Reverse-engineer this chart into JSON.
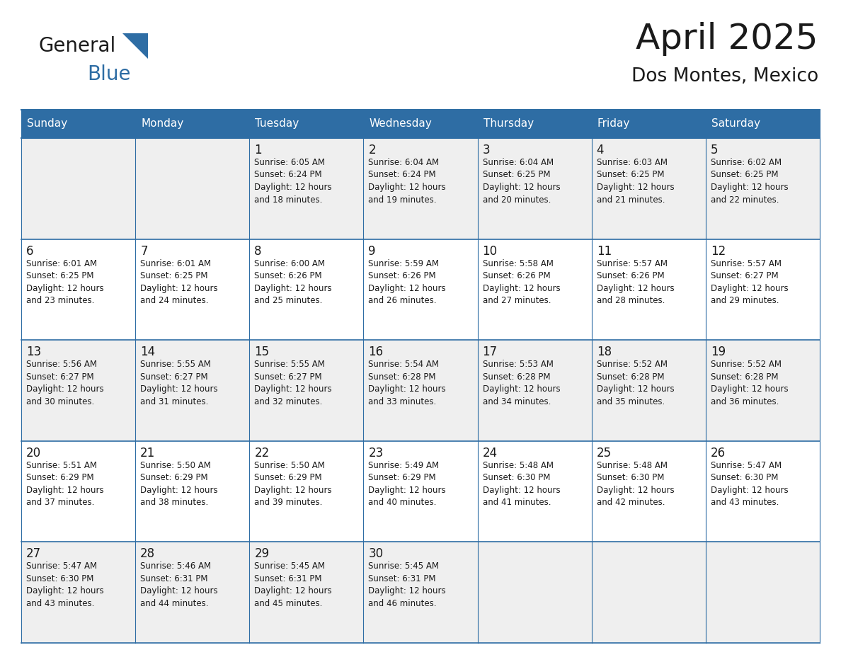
{
  "title": "April 2025",
  "subtitle": "Dos Montes, Mexico",
  "header_bg_color": "#2E6DA4",
  "header_text_color": "#FFFFFF",
  "row0_bg": "#EFEFEF",
  "row1_bg": "#FFFFFF",
  "border_color": "#2E6DA4",
  "text_color": "#1a1a1a",
  "logo_general_color": "#1a1a1a",
  "logo_blue_color": "#2E6DA4",
  "logo_triangle_color": "#2E6DA4",
  "day_names": [
    "Sunday",
    "Monday",
    "Tuesday",
    "Wednesday",
    "Thursday",
    "Friday",
    "Saturday"
  ],
  "weeks": [
    [
      {
        "day": "",
        "text": ""
      },
      {
        "day": "",
        "text": ""
      },
      {
        "day": "1",
        "text": "Sunrise: 6:05 AM\nSunset: 6:24 PM\nDaylight: 12 hours\nand 18 minutes."
      },
      {
        "day": "2",
        "text": "Sunrise: 6:04 AM\nSunset: 6:24 PM\nDaylight: 12 hours\nand 19 minutes."
      },
      {
        "day": "3",
        "text": "Sunrise: 6:04 AM\nSunset: 6:25 PM\nDaylight: 12 hours\nand 20 minutes."
      },
      {
        "day": "4",
        "text": "Sunrise: 6:03 AM\nSunset: 6:25 PM\nDaylight: 12 hours\nand 21 minutes."
      },
      {
        "day": "5",
        "text": "Sunrise: 6:02 AM\nSunset: 6:25 PM\nDaylight: 12 hours\nand 22 minutes."
      }
    ],
    [
      {
        "day": "6",
        "text": "Sunrise: 6:01 AM\nSunset: 6:25 PM\nDaylight: 12 hours\nand 23 minutes."
      },
      {
        "day": "7",
        "text": "Sunrise: 6:01 AM\nSunset: 6:25 PM\nDaylight: 12 hours\nand 24 minutes."
      },
      {
        "day": "8",
        "text": "Sunrise: 6:00 AM\nSunset: 6:26 PM\nDaylight: 12 hours\nand 25 minutes."
      },
      {
        "day": "9",
        "text": "Sunrise: 5:59 AM\nSunset: 6:26 PM\nDaylight: 12 hours\nand 26 minutes."
      },
      {
        "day": "10",
        "text": "Sunrise: 5:58 AM\nSunset: 6:26 PM\nDaylight: 12 hours\nand 27 minutes."
      },
      {
        "day": "11",
        "text": "Sunrise: 5:57 AM\nSunset: 6:26 PM\nDaylight: 12 hours\nand 28 minutes."
      },
      {
        "day": "12",
        "text": "Sunrise: 5:57 AM\nSunset: 6:27 PM\nDaylight: 12 hours\nand 29 minutes."
      }
    ],
    [
      {
        "day": "13",
        "text": "Sunrise: 5:56 AM\nSunset: 6:27 PM\nDaylight: 12 hours\nand 30 minutes."
      },
      {
        "day": "14",
        "text": "Sunrise: 5:55 AM\nSunset: 6:27 PM\nDaylight: 12 hours\nand 31 minutes."
      },
      {
        "day": "15",
        "text": "Sunrise: 5:55 AM\nSunset: 6:27 PM\nDaylight: 12 hours\nand 32 minutes."
      },
      {
        "day": "16",
        "text": "Sunrise: 5:54 AM\nSunset: 6:28 PM\nDaylight: 12 hours\nand 33 minutes."
      },
      {
        "day": "17",
        "text": "Sunrise: 5:53 AM\nSunset: 6:28 PM\nDaylight: 12 hours\nand 34 minutes."
      },
      {
        "day": "18",
        "text": "Sunrise: 5:52 AM\nSunset: 6:28 PM\nDaylight: 12 hours\nand 35 minutes."
      },
      {
        "day": "19",
        "text": "Sunrise: 5:52 AM\nSunset: 6:28 PM\nDaylight: 12 hours\nand 36 minutes."
      }
    ],
    [
      {
        "day": "20",
        "text": "Sunrise: 5:51 AM\nSunset: 6:29 PM\nDaylight: 12 hours\nand 37 minutes."
      },
      {
        "day": "21",
        "text": "Sunrise: 5:50 AM\nSunset: 6:29 PM\nDaylight: 12 hours\nand 38 minutes."
      },
      {
        "day": "22",
        "text": "Sunrise: 5:50 AM\nSunset: 6:29 PM\nDaylight: 12 hours\nand 39 minutes."
      },
      {
        "day": "23",
        "text": "Sunrise: 5:49 AM\nSunset: 6:29 PM\nDaylight: 12 hours\nand 40 minutes."
      },
      {
        "day": "24",
        "text": "Sunrise: 5:48 AM\nSunset: 6:30 PM\nDaylight: 12 hours\nand 41 minutes."
      },
      {
        "day": "25",
        "text": "Sunrise: 5:48 AM\nSunset: 6:30 PM\nDaylight: 12 hours\nand 42 minutes."
      },
      {
        "day": "26",
        "text": "Sunrise: 5:47 AM\nSunset: 6:30 PM\nDaylight: 12 hours\nand 43 minutes."
      }
    ],
    [
      {
        "day": "27",
        "text": "Sunrise: 5:47 AM\nSunset: 6:30 PM\nDaylight: 12 hours\nand 43 minutes."
      },
      {
        "day": "28",
        "text": "Sunrise: 5:46 AM\nSunset: 6:31 PM\nDaylight: 12 hours\nand 44 minutes."
      },
      {
        "day": "29",
        "text": "Sunrise: 5:45 AM\nSunset: 6:31 PM\nDaylight: 12 hours\nand 45 minutes."
      },
      {
        "day": "30",
        "text": "Sunrise: 5:45 AM\nSunset: 6:31 PM\nDaylight: 12 hours\nand 46 minutes."
      },
      {
        "day": "",
        "text": ""
      },
      {
        "day": "",
        "text": ""
      },
      {
        "day": "",
        "text": ""
      }
    ]
  ]
}
